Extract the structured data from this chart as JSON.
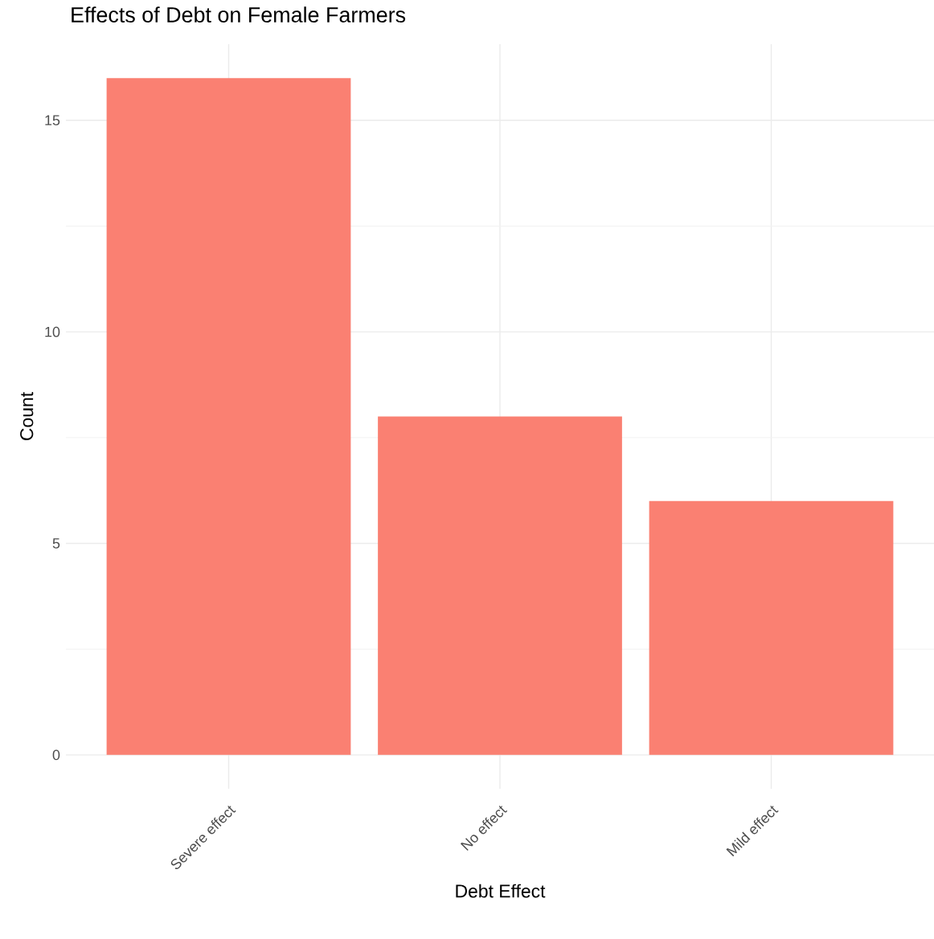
{
  "chart_data": {
    "type": "bar",
    "title": "Effects of Debt on Female Farmers",
    "xlabel": "Debt Effect",
    "ylabel": "Count",
    "categories": [
      "Severe effect",
      "No effect",
      "Mild effect"
    ],
    "values": [
      16,
      8,
      6
    ],
    "color": "#fa8072",
    "ylim": [
      -0.8,
      16.8
    ],
    "yticks": [
      0,
      5,
      10,
      15
    ],
    "grid": true
  }
}
